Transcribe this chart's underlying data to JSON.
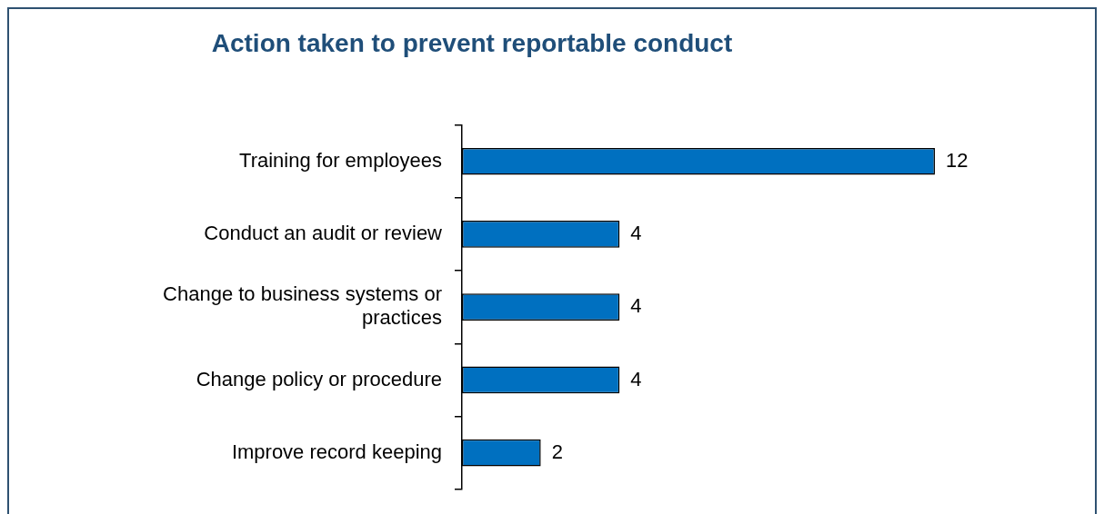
{
  "chart_data": {
    "type": "bar",
    "orientation": "horizontal",
    "title": "Action taken to prevent reportable conduct",
    "categories": [
      "Training for employees",
      "Conduct an audit or review",
      "Change to business systems or practices",
      "Change policy or procedure",
      "Improve record keeping"
    ],
    "values": [
      12,
      4,
      4,
      4,
      2
    ],
    "color": "#0070c0",
    "data_labels": true,
    "legend": false
  }
}
